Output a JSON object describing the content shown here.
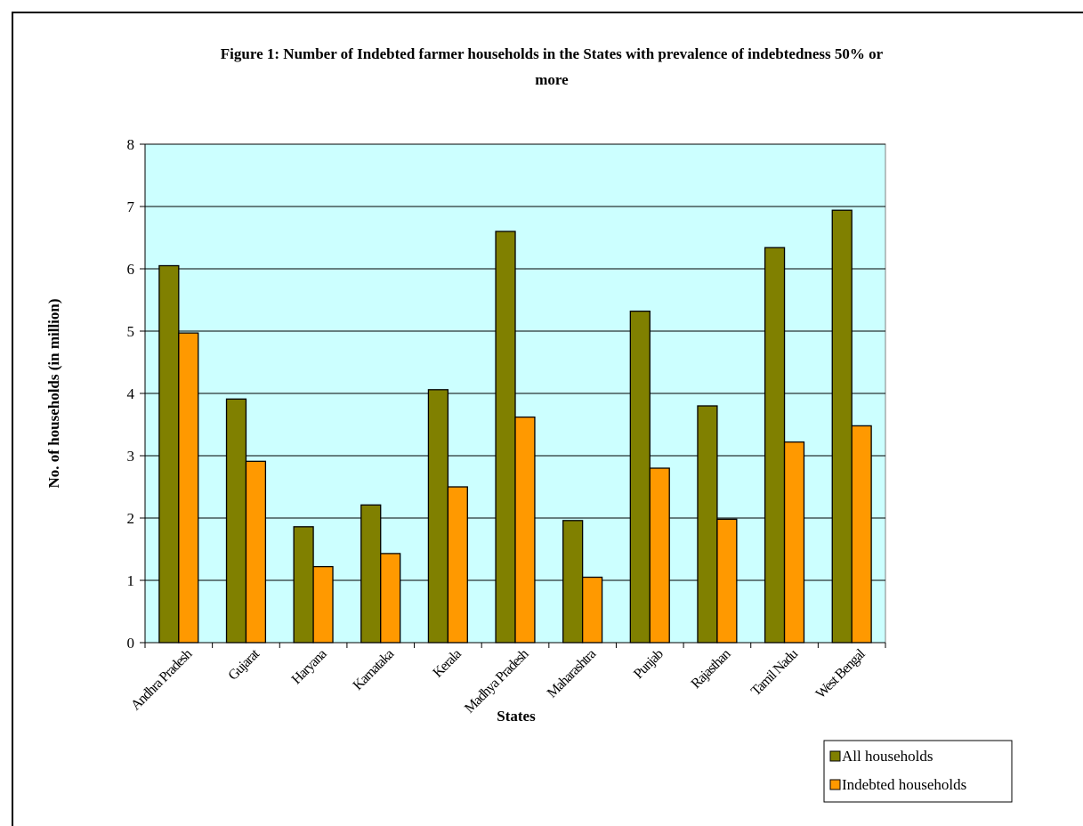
{
  "chart_data": {
    "type": "bar",
    "title_line1": "Figure 1: Number of Indebted farmer households in the States with prevalence of indebtedness 50% or",
    "title_line2": "more",
    "xlabel": "States",
    "ylabel": "No. of households (in million)",
    "ylim": [
      0,
      8
    ],
    "yticks": [
      0,
      1,
      2,
      3,
      4,
      5,
      6,
      7,
      8
    ],
    "grid": true,
    "legend_position": "bottom-right",
    "plot_background": "#CCFFFF",
    "categories": [
      "Andhra Pradesh",
      "Gujarat",
      "Haryana",
      "Karnataka",
      "Kerala",
      "Madhya Pradesh",
      "Maharashtra",
      "Punjab",
      "Rajasthan",
      "Tamil Nadu",
      "West Bengal"
    ],
    "series": [
      {
        "name": "All households",
        "color": "#808000",
        "values": [
          6.05,
          3.91,
          1.86,
          2.21,
          4.06,
          6.6,
          1.96,
          5.32,
          3.8,
          6.34,
          6.94
        ]
      },
      {
        "name": "Indebted households",
        "color": "#FF9900",
        "values": [
          4.97,
          2.91,
          1.22,
          1.43,
          2.5,
          3.62,
          1.05,
          2.8,
          1.98,
          3.22,
          3.48
        ]
      }
    ]
  }
}
